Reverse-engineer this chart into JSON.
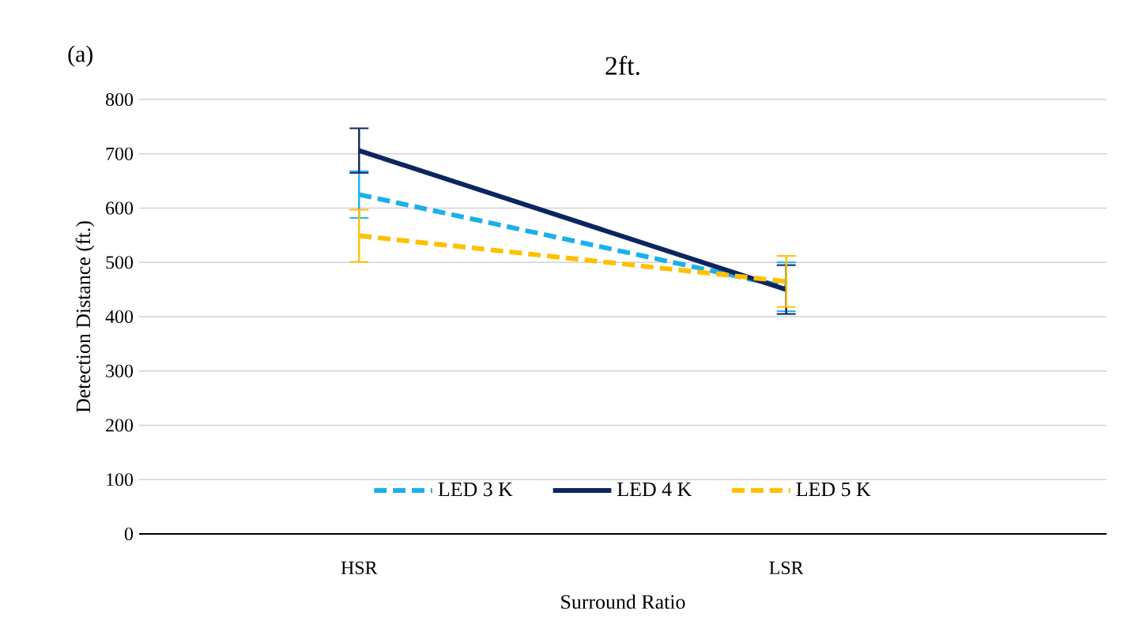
{
  "chart_data": {
    "type": "line",
    "title": "2ft.",
    "xlabel": "Surround Ratio",
    "ylabel": "Detection Distance (ft.)",
    "annotations": [
      "(a)"
    ],
    "categories": [
      "HSR",
      "LSR"
    ],
    "series": [
      {
        "name": "LED 3 K",
        "color": "#1ab0ea",
        "line_style": "dashed",
        "values": [
          625,
          455
        ],
        "errors": [
          43,
          45
        ]
      },
      {
        "name": "LED 4 K",
        "color": "#0d2461",
        "line_style": "solid",
        "values": [
          706,
          450
        ],
        "errors": [
          41,
          45
        ]
      },
      {
        "name": "LED 5 K",
        "color": "#ffc000",
        "line_style": "dashed",
        "values": [
          549,
          465
        ],
        "errors": [
          48,
          47
        ]
      }
    ],
    "ylim": [
      0,
      800
    ],
    "yticks": [
      0,
      100,
      200,
      300,
      400,
      500,
      600,
      700,
      800
    ],
    "grid": "y",
    "legend": "bottom",
    "marker": "none"
  }
}
